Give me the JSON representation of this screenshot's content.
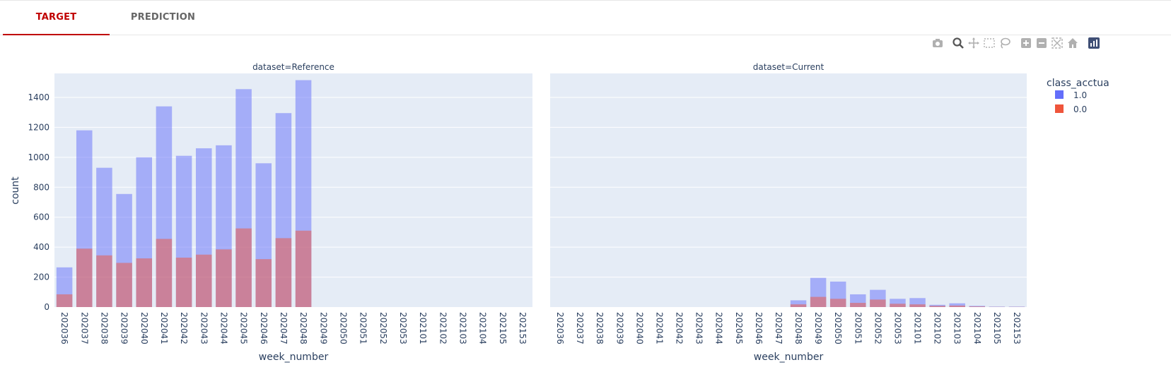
{
  "tabs": [
    {
      "label": "TARGET",
      "active": true
    },
    {
      "label": "PREDICTION",
      "active": false
    }
  ],
  "modebar": [
    "camera-icon",
    "zoom-icon",
    "pan-icon",
    "box-select-icon",
    "lasso-icon",
    "zoom-in-icon",
    "zoom-out-icon",
    "autoscale-icon",
    "reset-axes-icon",
    "plotly-logo-icon"
  ],
  "colors": {
    "series_1": "#636efa",
    "series_0": "#ef553b",
    "plot_bg": "#e5ecf6",
    "active_tab": "#c00000"
  },
  "chart_data": {
    "type": "bar",
    "barmode": "overlay",
    "ylabel": "count",
    "xlabel": "week_number",
    "ylim": [
      0,
      1560
    ],
    "yticks": [
      0,
      200,
      400,
      600,
      800,
      1000,
      1200,
      1400
    ],
    "legend": {
      "title": "class_acctua",
      "placement": "right"
    },
    "categories": [
      "202036",
      "202037",
      "202038",
      "202039",
      "202040",
      "202041",
      "202042",
      "202043",
      "202044",
      "202045",
      "202046",
      "202047",
      "202048",
      "202049",
      "202050",
      "202051",
      "202052",
      "202053",
      "202101",
      "202102",
      "202103",
      "202104",
      "202105",
      "202153"
    ],
    "panels": [
      {
        "title": "dataset=Reference",
        "series": [
          {
            "name": "1.0",
            "values": [
              265,
              1180,
              930,
              755,
              1000,
              1340,
              1010,
              1060,
              1080,
              1455,
              960,
              1295,
              1515,
              0,
              0,
              0,
              0,
              0,
              0,
              0,
              0,
              0,
              0,
              0
            ]
          },
          {
            "name": "0.0",
            "values": [
              85,
              390,
              345,
              295,
              325,
              455,
              330,
              350,
              385,
              525,
              320,
              460,
              510,
              0,
              0,
              0,
              0,
              0,
              0,
              0,
              0,
              0,
              0,
              0
            ]
          }
        ]
      },
      {
        "title": "dataset=Current",
        "series": [
          {
            "name": "1.0",
            "values": [
              0,
              0,
              0,
              0,
              0,
              0,
              0,
              0,
              0,
              0,
              0,
              0,
              45,
              195,
              170,
              85,
              115,
              55,
              60,
              15,
              25,
              8,
              3,
              3
            ]
          },
          {
            "name": "0.0",
            "values": [
              0,
              0,
              0,
              0,
              0,
              0,
              0,
              0,
              0,
              0,
              0,
              0,
              18,
              68,
              55,
              28,
              50,
              22,
              18,
              8,
              10,
              4,
              1,
              1
            ]
          }
        ]
      }
    ]
  }
}
